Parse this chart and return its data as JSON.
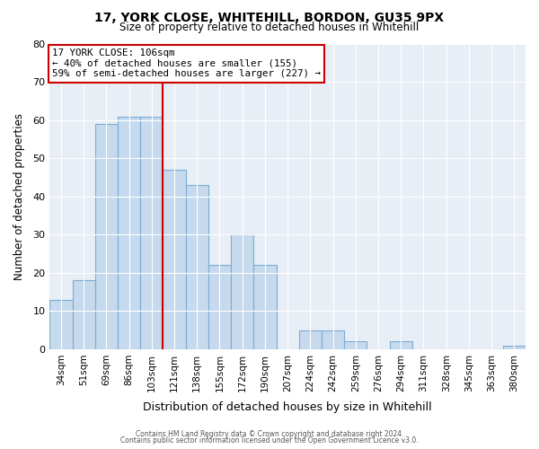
{
  "title_line1": "17, YORK CLOSE, WHITEHILL, BORDON, GU35 9PX",
  "title_line2": "Size of property relative to detached houses in Whitehill",
  "xlabel": "Distribution of detached houses by size in Whitehill",
  "ylabel": "Number of detached properties",
  "footer_line1": "Contains HM Land Registry data © Crown copyright and database right 2024.",
  "footer_line2": "Contains public sector information licensed under the Open Government Licence v3.0.",
  "annotation_line1": "17 YORK CLOSE: 106sqm",
  "annotation_line2": "← 40% of detached houses are smaller (155)",
  "annotation_line3": "59% of semi-detached houses are larger (227) →",
  "bar_labels": [
    "34sqm",
    "51sqm",
    "69sqm",
    "86sqm",
    "103sqm",
    "121sqm",
    "138sqm",
    "155sqm",
    "172sqm",
    "190sqm",
    "207sqm",
    "224sqm",
    "242sqm",
    "259sqm",
    "276sqm",
    "294sqm",
    "311sqm",
    "328sqm",
    "345sqm",
    "363sqm",
    "380sqm"
  ],
  "bar_values": [
    13,
    18,
    59,
    61,
    61,
    47,
    43,
    22,
    30,
    22,
    0,
    5,
    5,
    2,
    0,
    2,
    0,
    0,
    0,
    0,
    1
  ],
  "bar_color": "#c6d9ed",
  "bar_edge_color": "#7aadd4",
  "vline_x": 5,
  "vline_color": "#cc0000",
  "annotation_box_edge_color": "#cc0000",
  "ylim": [
    0,
    80
  ],
  "yticks": [
    0,
    10,
    20,
    30,
    40,
    50,
    60,
    70,
    80
  ],
  "fig_bg_color": "#ffffff",
  "plot_bg_color": "#e8eef5",
  "grid_color": "#ffffff",
  "title_color": "#000000",
  "footer_color": "#555555"
}
